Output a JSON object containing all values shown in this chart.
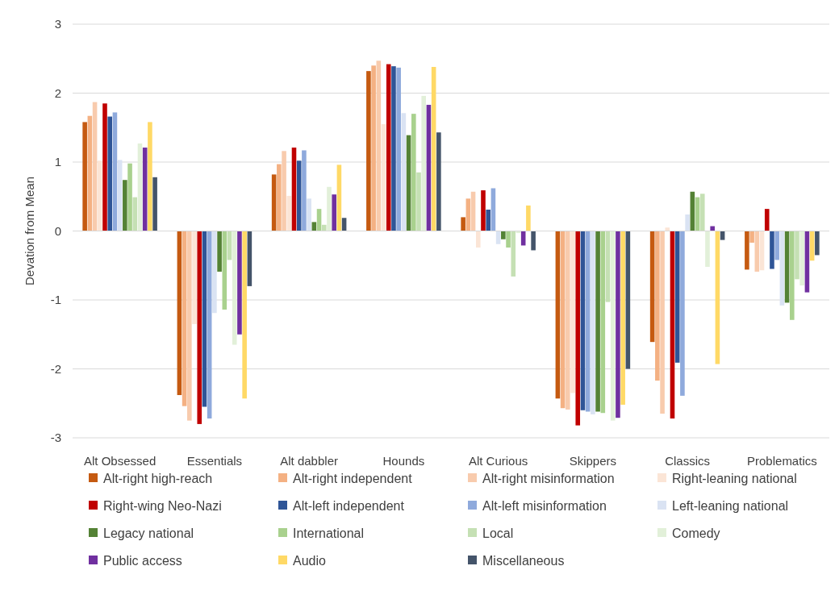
{
  "chart_data": {
    "type": "bar",
    "ylabel": "Devation from Mean",
    "categories": [
      "Alt Obsessed",
      "Essentials",
      "Alt dabbler",
      "Hounds",
      "Alt Curious",
      "Skippers",
      "Classics",
      "Problematics"
    ],
    "ylim": [
      -3,
      3
    ],
    "yticks": [
      -3,
      -2,
      -1,
      0,
      1,
      2,
      3
    ],
    "grid": "y",
    "legend": "bottom",
    "series": [
      {
        "name": "Alt-right high-reach",
        "color": "#c55a11",
        "values": [
          1.58,
          -2.38,
          0.82,
          2.32,
          0.2,
          -2.43,
          -1.61,
          -0.56
        ]
      },
      {
        "name": "Alt-right independent",
        "color": "#f4b183",
        "values": [
          1.67,
          -2.54,
          0.97,
          2.4,
          0.47,
          -2.57,
          -2.17,
          -0.17
        ]
      },
      {
        "name": "Alt-right misinformation",
        "color": "#f8cbad",
        "values": [
          1.87,
          -2.75,
          1.16,
          2.47,
          0.57,
          -2.59,
          -2.65,
          -0.59
        ]
      },
      {
        "name": "Right-leaning national",
        "color": "#fbe5d6",
        "values": [
          1.02,
          -1.35,
          0.51,
          1.55,
          -0.24,
          -2.35,
          0.05,
          -0.57
        ]
      },
      {
        "name": "Right-wing Neo-Nazi",
        "color": "#c00000",
        "values": [
          1.85,
          -2.8,
          1.21,
          2.42,
          0.59,
          -2.82,
          -2.72,
          0.32
        ]
      },
      {
        "name": "Alt-left independent",
        "color": "#2f5597",
        "values": [
          1.66,
          -2.55,
          1.02,
          2.39,
          0.31,
          -2.6,
          -1.91,
          -0.55
        ]
      },
      {
        "name": "Alt-left misinformation",
        "color": "#8faadc",
        "values": [
          1.72,
          -2.72,
          1.17,
          2.37,
          0.62,
          -2.62,
          -2.39,
          -0.42
        ]
      },
      {
        "name": "Left-leaning national",
        "color": "#dae3f3",
        "values": [
          1.03,
          -1.19,
          0.47,
          1.71,
          -0.19,
          -2.66,
          0.24,
          -1.08
        ]
      },
      {
        "name": "Legacy national",
        "color": "#548235",
        "values": [
          0.74,
          -0.59,
          0.13,
          1.39,
          -0.12,
          -2.62,
          0.57,
          -1.04
        ]
      },
      {
        "name": "International",
        "color": "#a9d18e",
        "values": [
          0.98,
          -1.14,
          0.32,
          1.7,
          -0.24,
          -2.64,
          0.49,
          -1.29
        ]
      },
      {
        "name": "Local",
        "color": "#c5e0b4",
        "values": [
          0.49,
          -0.42,
          0.09,
          0.85,
          -0.66,
          -1.03,
          0.54,
          -0.7
        ]
      },
      {
        "name": "Comedy",
        "color": "#e2f0d9",
        "values": [
          1.27,
          -1.65,
          0.64,
          1.96,
          -0.03,
          -2.75,
          -0.52,
          -0.79
        ]
      },
      {
        "name": "Public access",
        "color": "#7030a0",
        "values": [
          1.21,
          -1.5,
          0.53,
          1.83,
          -0.21,
          -2.71,
          0.07,
          -0.89
        ]
      },
      {
        "name": "Audio",
        "color": "#ffd966",
        "values": [
          1.58,
          -2.43,
          0.96,
          2.38,
          0.37,
          -2.52,
          -1.93,
          -0.43
        ]
      },
      {
        "name": "Miscellaneous",
        "color": "#44546a",
        "values": [
          0.78,
          -0.8,
          0.19,
          1.43,
          -0.28,
          -2.0,
          -0.13,
          -0.35
        ]
      }
    ]
  }
}
